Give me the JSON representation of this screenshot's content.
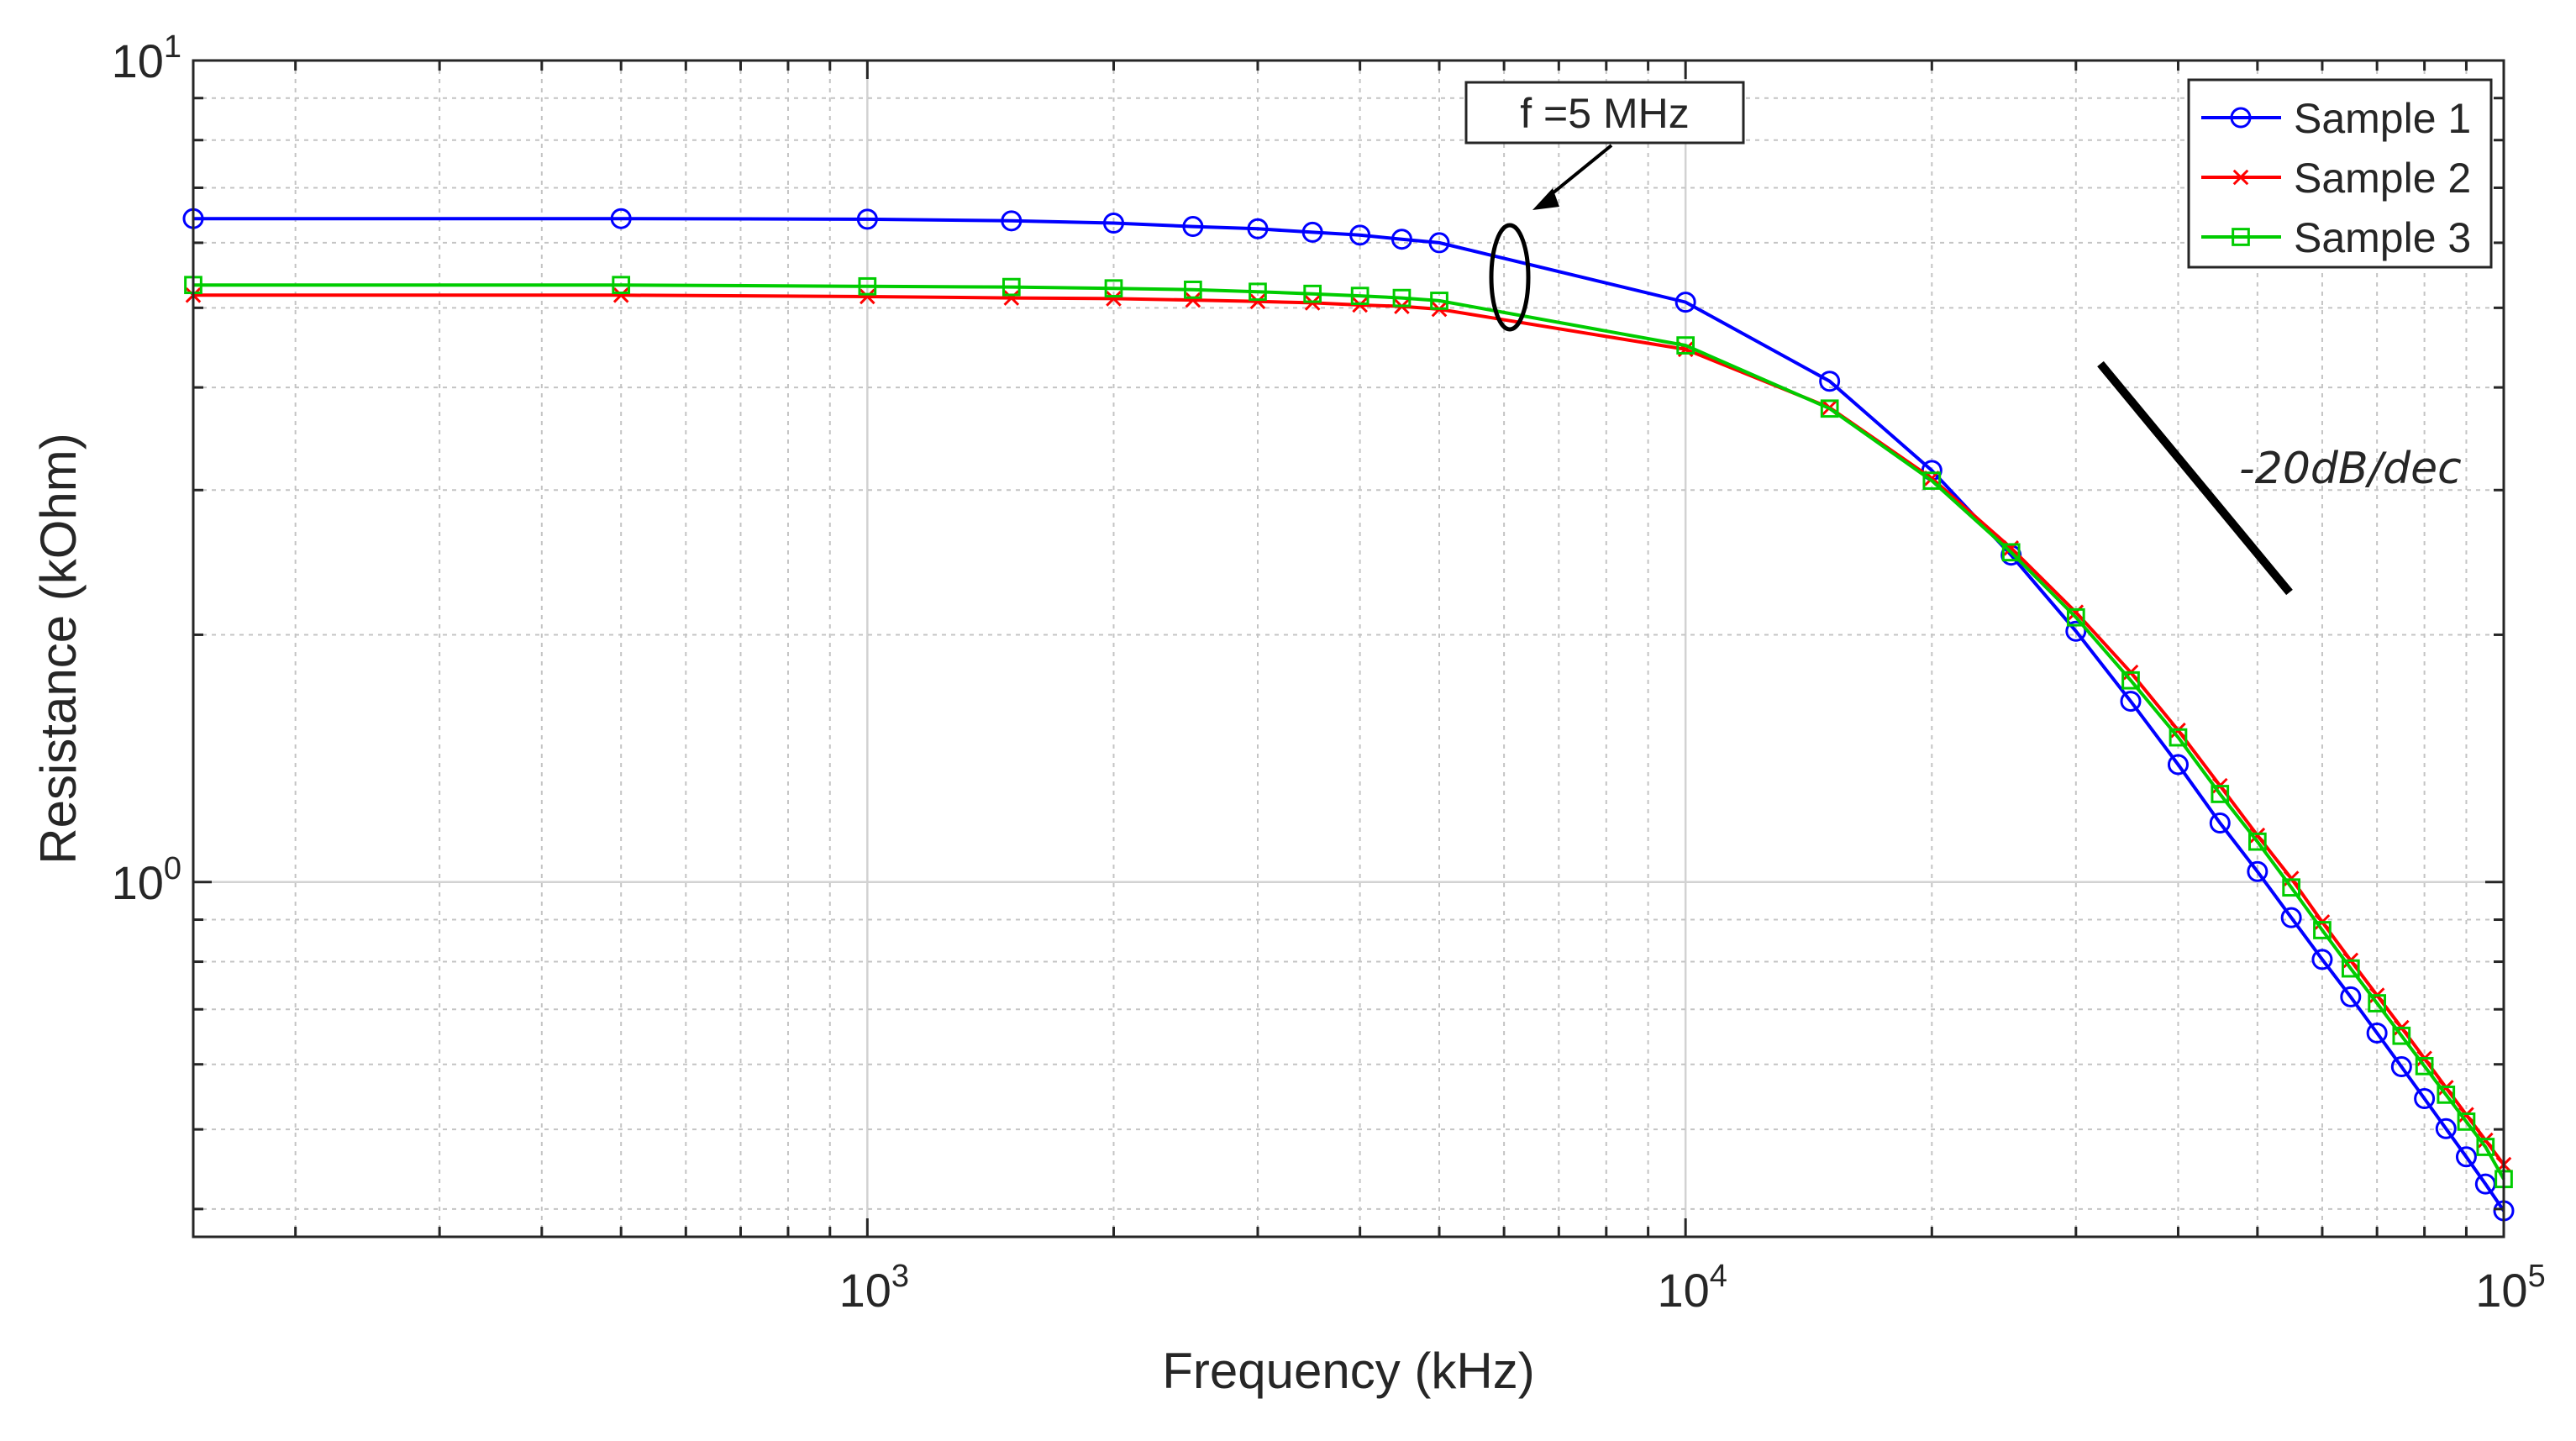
{
  "chart_data": {
    "type": "line",
    "title": "",
    "xlabel": "Frequency (kHz)",
    "ylabel": "Resistance (kOhm)",
    "xscale": "log",
    "yscale": "log",
    "xlim": [
      150,
      100000
    ],
    "ylim": [
      0.37,
      10
    ],
    "grid": true,
    "legend_position": "top-right",
    "x_ticks": [
      {
        "value": 1000,
        "base": "10",
        "exp": "3"
      },
      {
        "value": 10000,
        "base": "10",
        "exp": "4"
      },
      {
        "value": 100000,
        "base": "10",
        "exp": "5"
      }
    ],
    "y_ticks": [
      {
        "value": 1,
        "base": "10",
        "exp": "0"
      },
      {
        "value": 10,
        "base": "10",
        "exp": "1"
      }
    ],
    "x": [
      150,
      500,
      1000,
      1500,
      2000,
      2500,
      3000,
      3500,
      4000,
      4500,
      5000,
      10000,
      15000,
      20000,
      25000,
      30000,
      35000,
      40000,
      45000,
      50000,
      55000,
      60000,
      65000,
      70000,
      75000,
      80000,
      85000,
      90000,
      95000,
      100000
    ],
    "series": [
      {
        "name": "Sample 1",
        "color": "#0000ff",
        "marker": "circle",
        "values": [
          6.42,
          6.42,
          6.41,
          6.38,
          6.34,
          6.28,
          6.24,
          6.18,
          6.13,
          6.06,
          6.0,
          5.08,
          4.07,
          3.17,
          2.5,
          2.02,
          1.66,
          1.39,
          1.18,
          1.03,
          0.905,
          0.805,
          0.725,
          0.655,
          0.596,
          0.545,
          0.501,
          0.463,
          0.429,
          0.398
        ]
      },
      {
        "name": "Sample 2",
        "color": "#ff0000",
        "marker": "x",
        "values": [
          5.18,
          5.18,
          5.16,
          5.14,
          5.13,
          5.11,
          5.09,
          5.07,
          5.04,
          5.02,
          4.98,
          4.45,
          3.78,
          3.1,
          2.55,
          2.13,
          1.8,
          1.53,
          1.31,
          1.14,
          1.01,
          0.894,
          0.803,
          0.728,
          0.665,
          0.61,
          0.562,
          0.521,
          0.485,
          0.453
        ]
      },
      {
        "name": "Sample 3",
        "color": "#00cc00",
        "marker": "square",
        "values": [
          5.33,
          5.33,
          5.31,
          5.3,
          5.28,
          5.26,
          5.23,
          5.2,
          5.17,
          5.14,
          5.1,
          4.5,
          3.77,
          3.08,
          2.52,
          2.1,
          1.76,
          1.5,
          1.28,
          1.12,
          0.985,
          0.874,
          0.785,
          0.712,
          0.65,
          0.597,
          0.551,
          0.511,
          0.476,
          0.435
        ]
      }
    ],
    "annotations": {
      "frequency_label": "f =5 MHz",
      "slope_label": "-20dB/dec"
    }
  }
}
